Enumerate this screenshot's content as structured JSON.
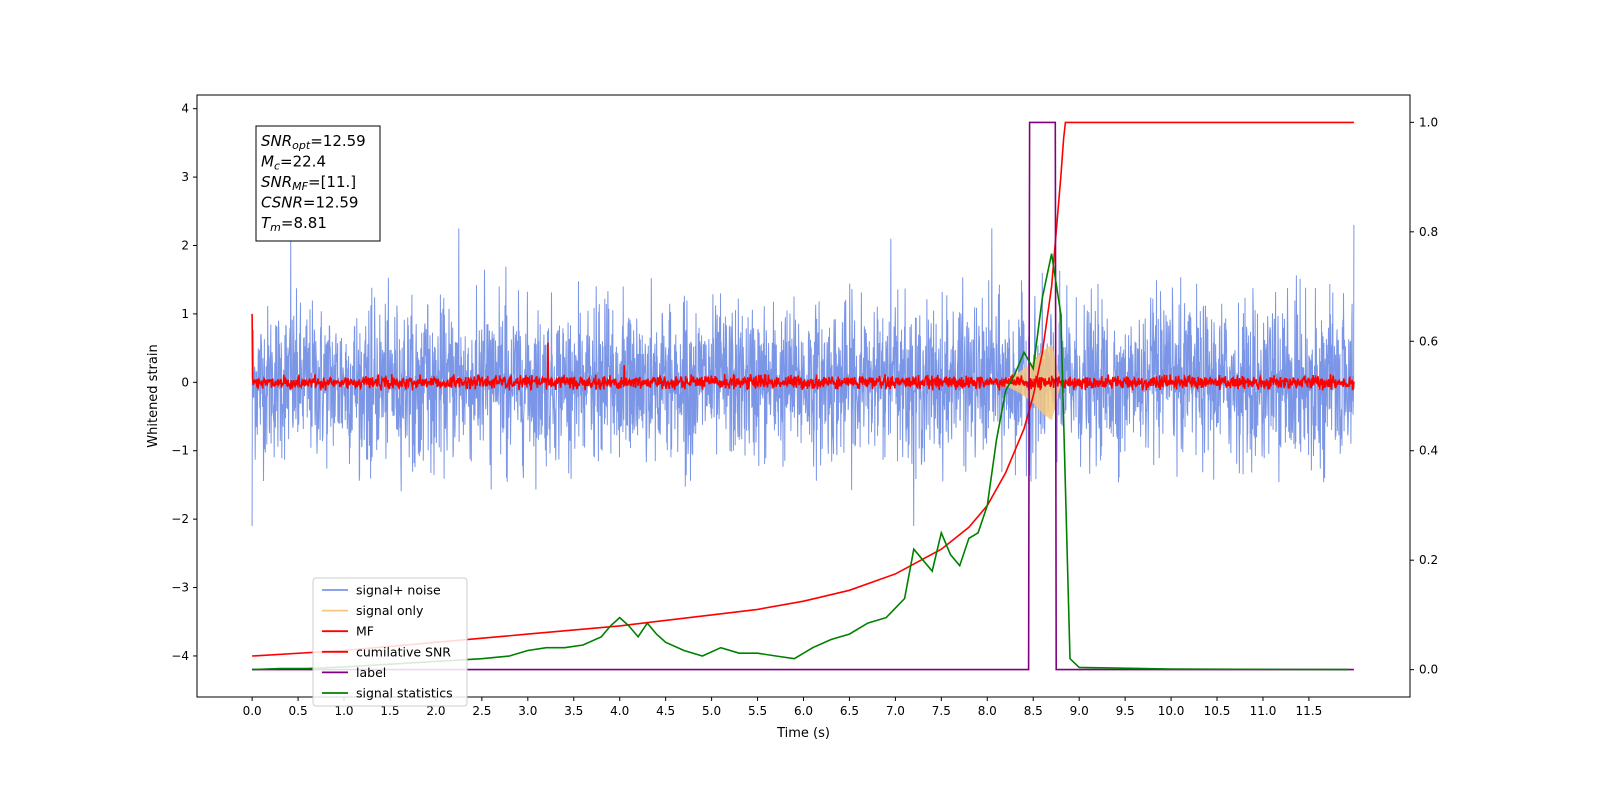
{
  "chart_data": {
    "type": "line",
    "xlabel": "Time (s)",
    "ylabel": "Whitened strain",
    "xlim": [
      -0.6,
      12.6
    ],
    "ylim": [
      -4.6,
      4.2
    ],
    "y2lim": [
      -0.05,
      1.05
    ],
    "x_ticks": [
      0.0,
      0.5,
      1.0,
      1.5,
      2.0,
      2.5,
      3.0,
      3.5,
      4.0,
      4.5,
      5.0,
      5.5,
      6.0,
      6.5,
      7.0,
      7.5,
      8.0,
      8.5,
      9.0,
      9.5,
      10.0,
      10.5,
      11.0,
      11.5
    ],
    "x_tick_labels": [
      "0.0",
      "0.5",
      "1.0",
      "1.5",
      "2.0",
      "2.5",
      "3.0",
      "3.5",
      "4.0",
      "4.5",
      "5.0",
      "5.5",
      "6.0",
      "6.5",
      "7.0",
      "7.5",
      "8.0",
      "8.5",
      "9.0",
      "9.5",
      "10.0",
      "10.5",
      "11.0",
      "11.5"
    ],
    "y_ticks": [
      -4,
      -3,
      -2,
      -1,
      0,
      1,
      2,
      3,
      4
    ],
    "y_tick_labels": [
      "−4",
      "−3",
      "−2",
      "−1",
      "0",
      "1",
      "2",
      "3",
      "4"
    ],
    "y2_ticks": [
      0.0,
      0.2,
      0.4,
      0.6,
      0.8,
      1.0
    ],
    "y2_tick_labels": [
      "0.0",
      "0.2",
      "0.4",
      "0.6",
      "0.8",
      "1.0"
    ],
    "grid": false,
    "legend_position": "lower-left",
    "annotation": [
      {
        "main": "SNR",
        "sub": "opt",
        "rest": "=12.59"
      },
      {
        "main": "M",
        "sub": "c",
        "rest": "=22.4"
      },
      {
        "main": "SNR",
        "sub": "MF",
        "rest": "=[11.]"
      },
      {
        "main": "CSNR",
        "sub": "",
        "rest": "=12.59"
      },
      {
        "main": "T",
        "sub": "m",
        "rest": "=8.81"
      }
    ],
    "series": [
      {
        "name": "signal+ noise",
        "color": "#7b96e6",
        "axis": "left",
        "style": "noise band",
        "x_range": [
          0.0,
          11.99
        ],
        "envelope_typical": [
          -1.3,
          1.4
        ],
        "spikes": [
          [
            0.0,
            -2.1
          ],
          [
            0.42,
            2.1
          ],
          [
            2.25,
            2.25
          ],
          [
            6.95,
            2.1
          ],
          [
            7.2,
            -2.1
          ],
          [
            8.05,
            2.25
          ],
          [
            11.99,
            2.3
          ]
        ]
      },
      {
        "name": "signal only",
        "color": "#f5c77e",
        "axis": "left",
        "style": "chirp",
        "x": [
          8.2,
          8.35,
          8.5,
          8.6,
          8.7,
          8.8
        ],
        "y": [
          0.05,
          0.15,
          0.3,
          0.45,
          0.55,
          0.0
        ]
      },
      {
        "name": "MF",
        "color": "#ff0000",
        "axis": "left",
        "style": "noise band",
        "x_range": [
          0.0,
          11.99
        ],
        "envelope_typical": [
          -0.12,
          0.12
        ],
        "spikes": [
          [
            0.0,
            1.0
          ],
          [
            3.22,
            0.58
          ],
          [
            4.05,
            0.25
          ]
        ]
      },
      {
        "name": "cumilative SNR",
        "color": "#ff0000",
        "axis": "right",
        "x": [
          0.0,
          1.0,
          2.0,
          3.0,
          4.0,
          5.0,
          5.5,
          6.0,
          6.5,
          7.0,
          7.5,
          7.8,
          8.0,
          8.2,
          8.4,
          8.5,
          8.6,
          8.7,
          8.75,
          8.8,
          8.83,
          8.85,
          11.99
        ],
        "y": [
          0.025,
          0.035,
          0.05,
          0.065,
          0.08,
          0.1,
          0.11,
          0.125,
          0.145,
          0.175,
          0.22,
          0.26,
          0.3,
          0.36,
          0.44,
          0.5,
          0.58,
          0.7,
          0.8,
          0.9,
          0.97,
          1.0,
          1.0
        ]
      },
      {
        "name": "label",
        "color": "#800080",
        "axis": "right",
        "x": [
          0.0,
          8.45,
          8.46,
          8.74,
          8.75,
          11.99
        ],
        "y": [
          0.0,
          0.0,
          1.0,
          1.0,
          0.0,
          0.0
        ]
      },
      {
        "name": "signal statistics",
        "color": "#008000",
        "axis": "right",
        "x": [
          0.0,
          0.3,
          0.6,
          1.0,
          1.5,
          2.0,
          2.5,
          2.8,
          3.0,
          3.2,
          3.4,
          3.6,
          3.8,
          3.9,
          4.0,
          4.1,
          4.2,
          4.3,
          4.4,
          4.5,
          4.7,
          4.9,
          5.1,
          5.3,
          5.5,
          5.7,
          5.9,
          6.1,
          6.3,
          6.5,
          6.7,
          6.9,
          7.1,
          7.2,
          7.3,
          7.4,
          7.5,
          7.6,
          7.7,
          7.8,
          7.9,
          8.0,
          8.1,
          8.2,
          8.3,
          8.4,
          8.5,
          8.6,
          8.7,
          8.8,
          8.9,
          9.0,
          10.0,
          11.93
        ],
        "y": [
          0.0,
          0.002,
          0.002,
          0.005,
          0.01,
          0.015,
          0.02,
          0.025,
          0.035,
          0.04,
          0.04,
          0.045,
          0.06,
          0.08,
          0.095,
          0.08,
          0.06,
          0.085,
          0.065,
          0.05,
          0.035,
          0.025,
          0.04,
          0.03,
          0.03,
          0.025,
          0.02,
          0.04,
          0.055,
          0.065,
          0.085,
          0.095,
          0.13,
          0.22,
          0.2,
          0.18,
          0.25,
          0.21,
          0.19,
          0.24,
          0.25,
          0.3,
          0.42,
          0.51,
          0.54,
          0.58,
          0.55,
          0.68,
          0.76,
          0.65,
          0.02,
          0.004,
          0.001,
          0.0
        ]
      }
    ]
  }
}
